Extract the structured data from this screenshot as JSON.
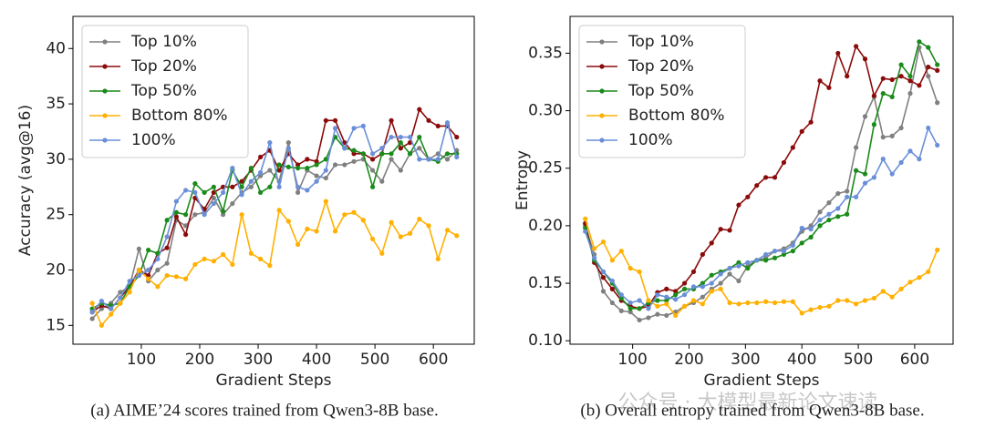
{
  "chart_data": [
    {
      "type": "line",
      "caption": "(a) AIME’24 scores trained from Qwen3-8B base.",
      "x_label": "Gradient Steps",
      "y_label": "Accuracy (avg@16)",
      "x": [
        16,
        32,
        48,
        64,
        80,
        96,
        112,
        128,
        144,
        160,
        176,
        192,
        208,
        224,
        240,
        256,
        272,
        288,
        304,
        320,
        336,
        352,
        368,
        384,
        400,
        416,
        432,
        448,
        464,
        480,
        496,
        512,
        528,
        544,
        560,
        576,
        592,
        608,
        624,
        640
      ],
      "xlim": [
        -17,
        670
      ],
      "xticks": [
        100,
        200,
        300,
        400,
        500,
        600
      ],
      "ylim": [
        13.3,
        42.9
      ],
      "yticks": [
        15,
        20,
        25,
        30,
        35,
        40
      ],
      "legend": "upper left",
      "series": [
        {
          "name": "Top 10%",
          "color": "#808080",
          "values": [
            15.6,
            16.5,
            17,
            18,
            18.5,
            21.9,
            19,
            20,
            20.6,
            24.5,
            24,
            25,
            25.2,
            26.5,
            25,
            26,
            27,
            27.5,
            28.5,
            29,
            28,
            31.5,
            27,
            29,
            28.5,
            28.3,
            29.5,
            29.5,
            29.8,
            30,
            29,
            28,
            30,
            29,
            30.5,
            31,
            30,
            30.5,
            30,
            30.8
          ]
        },
        {
          "name": "Top 20%",
          "color": "#8b0a0a",
          "values": [
            16.2,
            16.8,
            16.5,
            17.5,
            18.5,
            20,
            19.5,
            21.5,
            22,
            24.8,
            23.2,
            26.5,
            25.5,
            27,
            27.5,
            27.5,
            28,
            29,
            30.2,
            30.8,
            29,
            30.5,
            29.5,
            30,
            29.8,
            33.5,
            33.5,
            31.5,
            30.5,
            30.5,
            30,
            30.5,
            33.5,
            31,
            31.5,
            34.5,
            33.5,
            33,
            33,
            32
          ]
        },
        {
          "name": "Top 50%",
          "color": "#1a8a1a",
          "values": [
            16.5,
            17,
            16.8,
            17,
            18.5,
            19.5,
            21.8,
            21.5,
            24.5,
            25.2,
            25,
            27.8,
            27,
            27.5,
            25.3,
            29,
            27.5,
            29.2,
            27,
            27.5,
            29.5,
            29.3,
            29.2,
            29.2,
            29.5,
            30,
            32,
            31,
            30.8,
            30.5,
            27.5,
            30.5,
            30.5,
            31.5,
            30.5,
            32,
            30,
            29.8,
            30.5,
            30.5
          ]
        },
        {
          "name": "Bottom 80%",
          "color": "#ffb000",
          "values": [
            17,
            15,
            16,
            17,
            18,
            20,
            19.2,
            18.5,
            19.5,
            19.4,
            19.2,
            20.5,
            21,
            20.8,
            21.4,
            20.5,
            25,
            21.5,
            21,
            20.4,
            25.4,
            24.4,
            22.3,
            23.7,
            23.5,
            26.2,
            23.5,
            25,
            25.2,
            24.5,
            22.8,
            21.5,
            24.3,
            23,
            23.3,
            24.6,
            24,
            21,
            23.6,
            23.1
          ]
        },
        {
          "name": "100%",
          "color": "#6a8fd8",
          "values": [
            16.2,
            17.2,
            16.5,
            17.5,
            19,
            19.5,
            20,
            21,
            23,
            26.2,
            27.2,
            27,
            25,
            26,
            27,
            29.2,
            26.8,
            28,
            28.8,
            31.5,
            27.5,
            31,
            27.5,
            27.2,
            28,
            29,
            32.8,
            31,
            32.8,
            33,
            30.5,
            31,
            32,
            32,
            32,
            30,
            30,
            30,
            33.3,
            30.2
          ]
        }
      ]
    },
    {
      "type": "line",
      "caption": "(b) Overall entropy trained from Qwen3-8B base.",
      "x_label": "Gradient Steps",
      "y_label": "Entropy",
      "x": [
        16,
        32,
        48,
        64,
        80,
        96,
        112,
        128,
        144,
        160,
        176,
        192,
        208,
        224,
        240,
        256,
        272,
        288,
        304,
        320,
        336,
        352,
        368,
        384,
        400,
        416,
        432,
        448,
        464,
        480,
        496,
        512,
        528,
        544,
        560,
        576,
        592,
        608,
        624,
        640
      ],
      "xlim": [
        -11,
        668
      ],
      "xticks": [
        100,
        200,
        300,
        400,
        500,
        600
      ],
      "ylim": [
        0.097,
        0.382
      ],
      "yticks": [
        {
          "value": 0.1,
          "label": "0.10"
        },
        0.15,
        {
          "value": 0.2,
          "label": "0.20"
        },
        0.25,
        {
          "value": 0.3,
          "label": "0.30"
        },
        0.35
      ],
      "legend": "upper left",
      "series": [
        {
          "name": "Top 10%",
          "color": "#808080",
          "values": [
            0.2,
            0.175,
            0.143,
            0.133,
            0.126,
            0.125,
            0.118,
            0.12,
            0.123,
            0.122,
            0.125,
            0.13,
            0.133,
            0.138,
            0.145,
            0.15,
            0.158,
            0.152,
            0.165,
            0.17,
            0.172,
            0.178,
            0.18,
            0.185,
            0.195,
            0.2,
            0.212,
            0.22,
            0.228,
            0.23,
            0.268,
            0.295,
            0.312,
            0.277,
            0.278,
            0.285,
            0.315,
            0.355,
            0.33,
            0.307
          ]
        },
        {
          "name": "Top 20%",
          "color": "#8b0a0a",
          "values": [
            0.202,
            0.168,
            0.155,
            0.145,
            0.135,
            0.13,
            0.128,
            0.13,
            0.142,
            0.145,
            0.143,
            0.15,
            0.16,
            0.175,
            0.185,
            0.197,
            0.196,
            0.218,
            0.225,
            0.235,
            0.242,
            0.242,
            0.255,
            0.268,
            0.282,
            0.29,
            0.326,
            0.32,
            0.35,
            0.33,
            0.356,
            0.345,
            0.313,
            0.328,
            0.327,
            0.33,
            0.326,
            0.322,
            0.338,
            0.335
          ]
        },
        {
          "name": "Top 50%",
          "color": "#1a8a1a",
          "values": [
            0.198,
            0.17,
            0.16,
            0.15,
            0.137,
            0.128,
            0.128,
            0.133,
            0.135,
            0.135,
            0.14,
            0.145,
            0.145,
            0.15,
            0.157,
            0.16,
            0.163,
            0.168,
            0.163,
            0.17,
            0.17,
            0.172,
            0.175,
            0.178,
            0.185,
            0.19,
            0.2,
            0.205,
            0.208,
            0.21,
            0.248,
            0.245,
            0.288,
            0.315,
            0.312,
            0.34,
            0.33,
            0.36,
            0.355,
            0.34
          ]
        },
        {
          "name": "Bottom 80%",
          "color": "#ffb000",
          "values": [
            0.206,
            0.18,
            0.186,
            0.17,
            0.178,
            0.163,
            0.16,
            0.135,
            0.13,
            0.132,
            0.122,
            0.13,
            0.135,
            0.132,
            0.143,
            0.145,
            0.133,
            0.132,
            0.133,
            0.133,
            0.134,
            0.133,
            0.134,
            0.134,
            0.124,
            0.127,
            0.129,
            0.13,
            0.135,
            0.135,
            0.132,
            0.135,
            0.137,
            0.143,
            0.138,
            0.145,
            0.151,
            0.155,
            0.16,
            0.179
          ]
        },
        {
          "name": "100%",
          "color": "#6a8fd8",
          "values": [
            0.195,
            0.172,
            0.16,
            0.152,
            0.14,
            0.133,
            0.135,
            0.128,
            0.14,
            0.138,
            0.136,
            0.14,
            0.147,
            0.147,
            0.15,
            0.158,
            0.163,
            0.165,
            0.168,
            0.17,
            0.175,
            0.178,
            0.178,
            0.183,
            0.198,
            0.197,
            0.205,
            0.21,
            0.215,
            0.225,
            0.225,
            0.237,
            0.242,
            0.258,
            0.245,
            0.255,
            0.265,
            0.258,
            0.285,
            0.27
          ]
        }
      ]
    }
  ],
  "watermark": "公众号 · 大模型最新论文速读"
}
